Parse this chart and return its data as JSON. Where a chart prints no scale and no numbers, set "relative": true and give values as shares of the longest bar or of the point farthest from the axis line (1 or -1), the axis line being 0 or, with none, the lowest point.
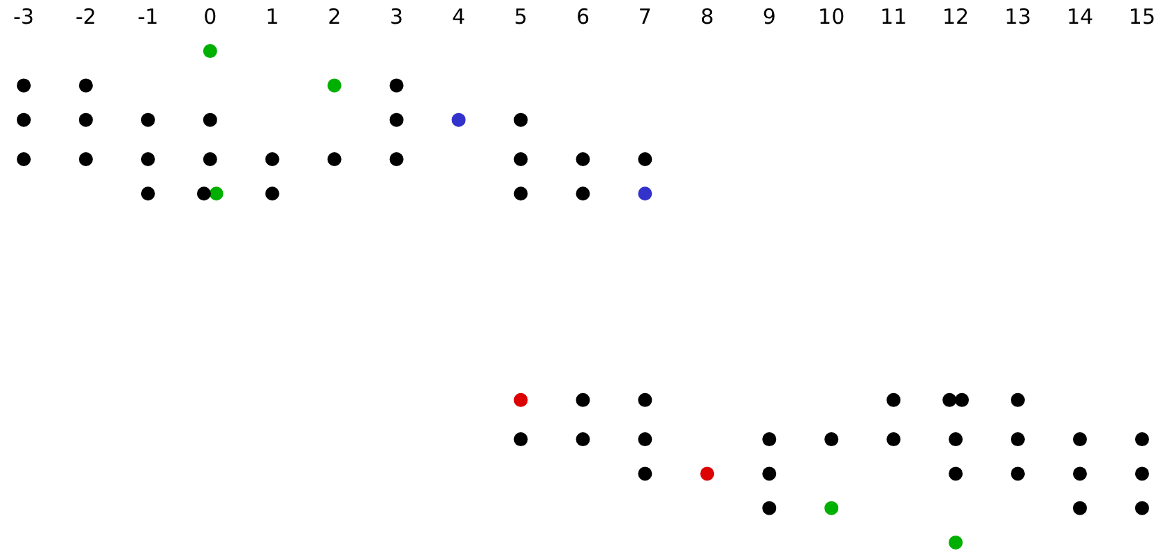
{
  "chart_data": {
    "type": "scatter",
    "relative": true,
    "xlim": [
      -3,
      15
    ],
    "xticks": [
      -3,
      -2,
      -1,
      0,
      1,
      2,
      3,
      4,
      5,
      6,
      7,
      8,
      9,
      10,
      11,
      12,
      13,
      14,
      15
    ],
    "tick_labels": "x",
    "grid": false,
    "legend": false,
    "marker": "circle",
    "series": [
      {
        "color": "#000000",
        "x": [
          -3,
          -2,
          3,
          -3,
          -2,
          -1,
          0,
          3,
          5,
          -3,
          -2,
          -1,
          0,
          1,
          2,
          3,
          5,
          6,
          7,
          -1,
          -0.1,
          1,
          5,
          6,
          6,
          7,
          11,
          11.9,
          12.1,
          13,
          5,
          6,
          7,
          9,
          10,
          11,
          12,
          13,
          14,
          15,
          7,
          9,
          12,
          13,
          14,
          15,
          9,
          14,
          15
        ],
        "values": [
          0.93,
          0.93,
          0.93,
          0.86,
          0.86,
          0.86,
          0.86,
          0.86,
          0.86,
          0.78,
          0.78,
          0.78,
          0.78,
          0.78,
          0.78,
          0.78,
          0.78,
          0.78,
          0.78,
          0.71,
          0.71,
          0.71,
          0.71,
          0.71,
          0.29,
          0.29,
          0.29,
          0.29,
          0.29,
          0.29,
          0.21,
          0.21,
          0.21,
          0.21,
          0.21,
          0.21,
          0.21,
          0.21,
          0.21,
          0.21,
          0.14,
          0.14,
          0.14,
          0.14,
          0.14,
          0.14,
          0.07,
          0.07,
          0.07
        ]
      },
      {
        "color": "#00b000",
        "x": [
          0,
          2,
          0.1,
          10,
          12
        ],
        "values": [
          1,
          0.93,
          0.71,
          0.07,
          0
        ]
      },
      {
        "color": "#3333cc",
        "x": [
          4,
          7
        ],
        "values": [
          0.86,
          0.71
        ]
      },
      {
        "color": "#dd0000",
        "x": [
          5,
          8
        ],
        "values": [
          0.29,
          0.14
        ]
      }
    ]
  }
}
